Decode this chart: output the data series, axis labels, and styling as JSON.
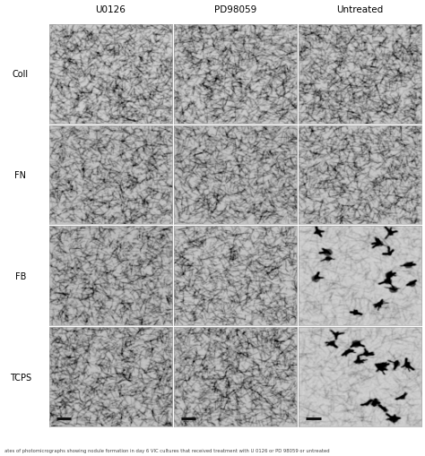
{
  "col_labels": [
    "U0126",
    "PD98059",
    "Untreated"
  ],
  "row_labels": [
    "Coll",
    "FN",
    "FB",
    "TCPS"
  ],
  "n_rows": 4,
  "n_cols": 3,
  "fig_bg": "#ffffff",
  "title_fontsize": 7.5,
  "row_label_fontsize": 7,
  "caption_fontsize": 3.8,
  "caption_text": "ates of photomicrographs showing nodule formation in day 6 VIC cultures that received treatment with U 0126 or PD 98059 or untreated",
  "scale_bar_color": "#111111",
  "border_color": "#aaaaaa"
}
